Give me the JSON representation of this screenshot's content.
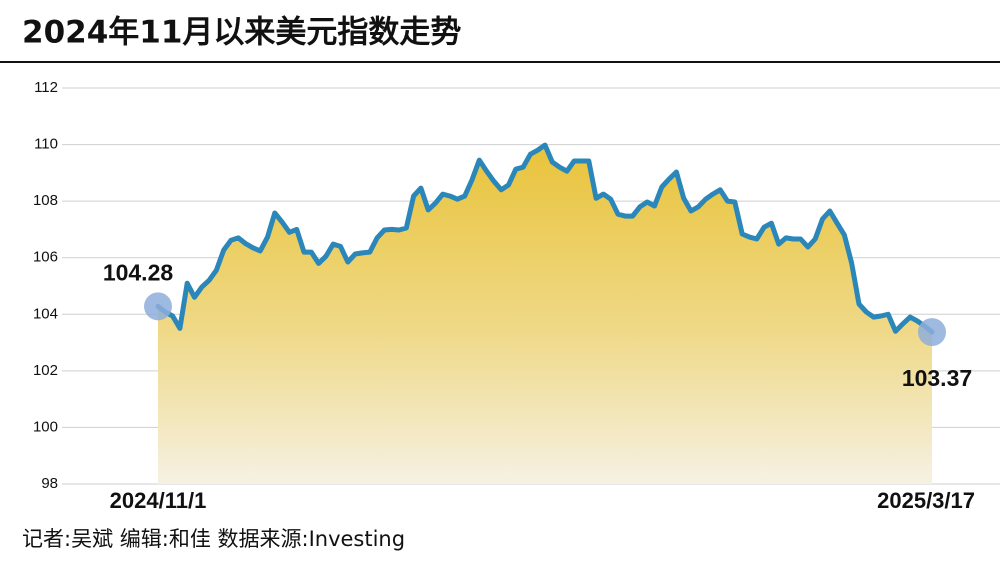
{
  "chart_data": {
    "type": "line",
    "title": "2024年11月以来美元指数走势",
    "source": "记者:吴斌  编辑:和佳  数据来源:Investing",
    "categories": [
      "2024/11/1",
      null,
      null,
      null,
      null,
      null,
      null,
      null,
      null,
      null,
      null,
      null,
      null,
      null,
      null,
      null,
      null,
      null,
      null,
      null,
      null,
      null,
      null,
      null,
      null,
      null,
      null,
      null,
      null,
      null,
      null,
      null,
      null,
      null,
      null,
      null,
      null,
      null,
      null,
      null,
      null,
      null,
      null,
      null,
      null,
      null,
      null,
      null,
      null,
      null,
      null,
      null,
      null,
      null,
      null,
      null,
      null,
      null,
      null,
      null,
      null,
      null,
      null,
      null,
      null,
      null,
      null,
      null,
      null,
      null,
      null,
      null,
      null,
      null,
      null,
      null,
      null,
      null,
      null,
      null,
      null,
      null,
      null,
      null,
      null,
      null,
      null,
      null,
      null,
      null,
      null,
      null,
      null,
      null,
      null,
      null,
      null,
      null,
      null,
      null,
      null,
      null,
      null,
      null,
      null,
      null,
      "2025/3/17"
    ],
    "series": [
      {
        "color": "#2b87b9",
        "values": [
          104.28,
          104.08,
          103.94,
          103.5,
          105.1,
          104.6,
          104.96,
          105.2,
          105.56,
          106.27,
          106.62,
          106.7,
          106.5,
          106.35,
          106.24,
          106.73,
          107.58,
          107.26,
          106.9,
          107.0,
          106.2,
          106.2,
          105.8,
          106.05,
          106.48,
          106.4,
          105.85,
          106.13,
          106.17,
          106.2,
          106.7,
          106.98,
          107.0,
          106.98,
          107.05,
          108.18,
          108.46,
          107.69,
          107.93,
          108.25,
          108.18,
          108.07,
          108.18,
          108.75,
          109.45,
          109.06,
          108.7,
          108.4,
          108.57,
          109.13,
          109.2,
          109.66,
          109.8,
          109.98,
          109.38,
          109.2,
          109.06,
          109.42,
          109.42,
          109.42,
          108.1,
          108.25,
          108.07,
          107.54,
          107.47,
          107.47,
          107.8,
          107.97,
          107.83,
          108.5,
          108.78,
          109.03,
          108.1,
          107.65,
          107.8,
          108.07,
          108.25,
          108.4,
          108.0,
          107.97,
          106.84,
          106.73,
          106.66,
          107.08,
          107.22,
          106.48,
          106.7,
          106.66,
          106.66,
          106.38,
          106.66,
          107.37,
          107.65,
          107.22,
          106.8,
          105.8,
          104.36,
          104.08,
          103.9,
          103.94,
          104.0,
          103.4,
          103.66,
          103.9,
          103.76,
          103.58,
          103.37
        ]
      }
    ],
    "ylim": [
      98,
      112
    ],
    "yticks": [
      98,
      100,
      102,
      104,
      106,
      108,
      110,
      112
    ],
    "grid": true
  }
}
